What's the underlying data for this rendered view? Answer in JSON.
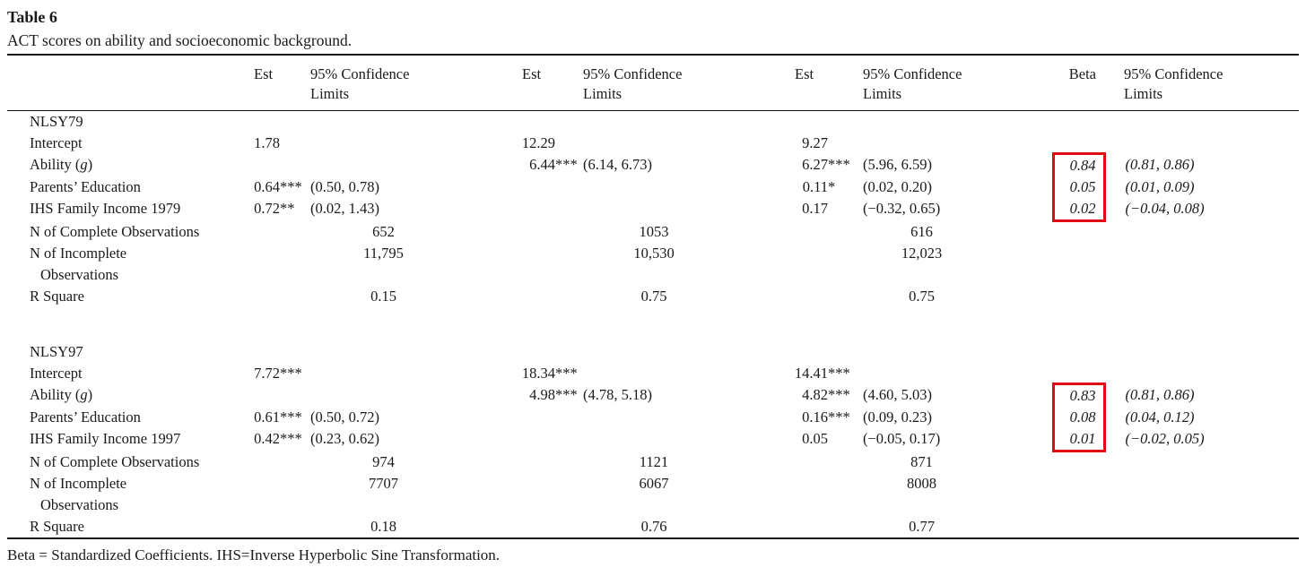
{
  "page": {
    "title": "Table 6",
    "caption": "ACT scores on ability and socioeconomic background.",
    "footnote": "Beta = Standardized Coefficients. IHS=Inverse Hyperbolic Sine Transformation."
  },
  "accent": {
    "box_color": "#e30b13",
    "text_color": "#1a1a1a",
    "rule_color": "#141414"
  },
  "header": {
    "est": "Est",
    "beta": "Beta",
    "ci_line1": "95% Confidence",
    "ci_line2": "Limits"
  },
  "panels": [
    {
      "section": "NLSY79",
      "rows": [
        {
          "type": "coef",
          "label": "Intercept",
          "est1": "1.78",
          "ci1": "",
          "est2": "12.29",
          "ci2": "",
          "est3": "9.27",
          "ci3": "",
          "beta": "",
          "ci4": "",
          "box": ""
        },
        {
          "type": "coef",
          "label": "Ability (g)",
          "est1": "",
          "ci1": "",
          "est2": "6.44***",
          "ci2": "(6.14, 6.73)",
          "est3": "6.27***",
          "ci3": "(5.96, 6.59)",
          "beta": "0.84",
          "ci4": "(0.81, 0.86)",
          "box": "top"
        },
        {
          "type": "coef",
          "label": "Parents’ Education",
          "est1": "0.64***",
          "ci1": "(0.50, 0.78)",
          "est2": "",
          "ci2": "",
          "est3": "0.11*",
          "ci3": "(0.02, 0.20)",
          "beta": "0.05",
          "ci4": "(0.01, 0.09)",
          "box": "mid"
        },
        {
          "type": "coef",
          "label": "IHS Family Income 1979",
          "est1": "0.72**",
          "ci1": "(0.02, 1.43)",
          "est2": "",
          "ci2": "",
          "est3": "0.17",
          "ci3": "(−0.32, 0.65)",
          "beta": "0.02",
          "ci4": "(−0.04, 0.08)",
          "box": "bottom"
        },
        {
          "type": "span",
          "label": "N of Complete Observations",
          "values": [
            "652",
            "1053",
            "616"
          ]
        },
        {
          "type": "span",
          "label": "N of Incomplete",
          "label2": "Observations",
          "values": [
            "11,795",
            "10,530",
            "12,023"
          ]
        },
        {
          "type": "span",
          "label": "R Square",
          "values": [
            "0.15",
            "0.75",
            "0.75"
          ]
        }
      ]
    },
    {
      "section": "NLSY97",
      "rows": [
        {
          "type": "coef",
          "label": "Intercept",
          "est1": "7.72***",
          "ci1": "",
          "est2": "18.34***",
          "ci2": "",
          "est3": "14.41***",
          "ci3": "",
          "beta": "",
          "ci4": "",
          "box": ""
        },
        {
          "type": "coef",
          "label": "Ability (g)",
          "est1": "",
          "ci1": "",
          "est2": "4.98***",
          "ci2": "(4.78, 5.18)",
          "est3": "4.82***",
          "ci3": "(4.60, 5.03)",
          "beta": "0.83",
          "ci4": "(0.81, 0.86)",
          "box": "top"
        },
        {
          "type": "coef",
          "label": "Parents’ Education",
          "est1": "0.61***",
          "ci1": "(0.50, 0.72)",
          "est2": "",
          "ci2": "",
          "est3": "0.16***",
          "ci3": "(0.09, 0.23)",
          "beta": "0.08",
          "ci4": "(0.04, 0.12)",
          "box": "mid"
        },
        {
          "type": "coef",
          "label": "IHS Family Income 1997",
          "est1": "0.42***",
          "ci1": "(0.23, 0.62)",
          "est2": "",
          "ci2": "",
          "est3": "0.05",
          "ci3": "(−0.05, 0.17)",
          "beta": "0.01",
          "ci4": "(−0.02, 0.05)",
          "box": "bottom"
        },
        {
          "type": "span",
          "label": "N of Complete Observations",
          "values": [
            "974",
            "1121",
            "871"
          ]
        },
        {
          "type": "span",
          "label": "N of Incomplete",
          "label2": "Observations",
          "values": [
            "7707",
            "6067",
            "8008"
          ]
        },
        {
          "type": "span",
          "label": "R Square",
          "values": [
            "0.18",
            "0.76",
            "0.77"
          ]
        }
      ]
    }
  ]
}
